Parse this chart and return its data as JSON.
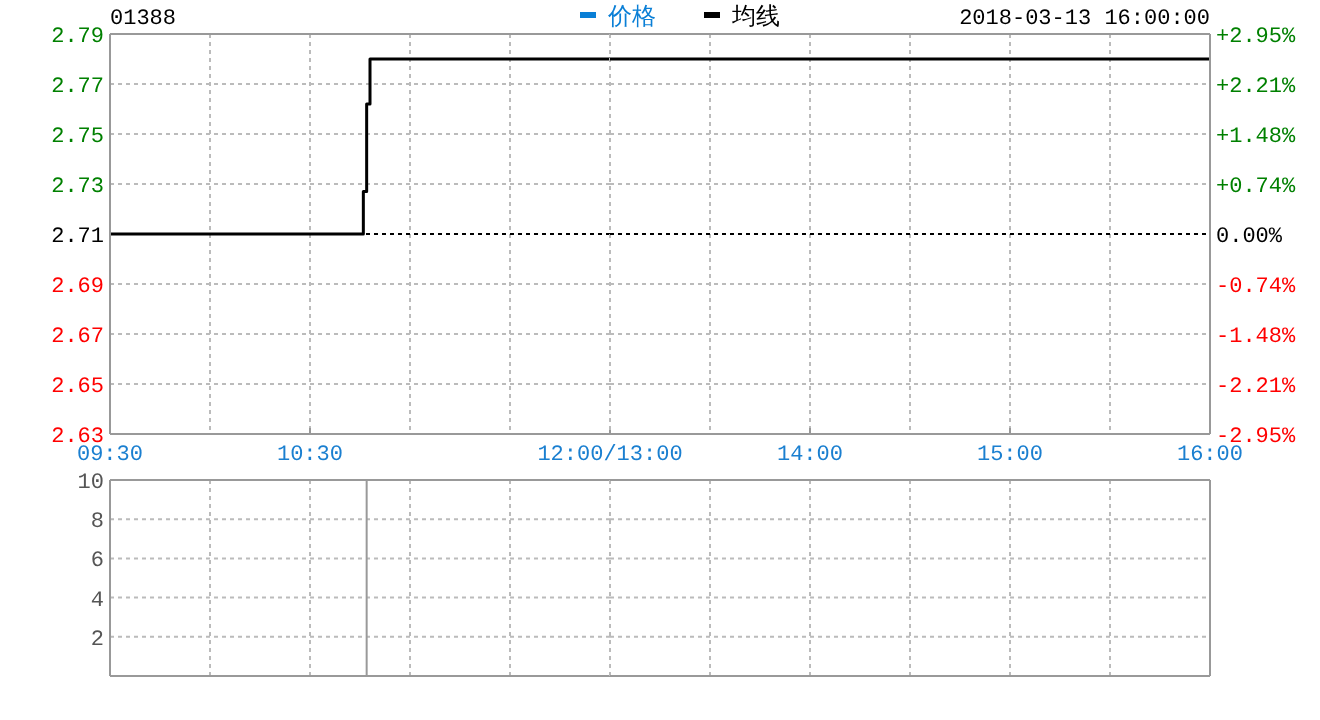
{
  "chart_data": [
    {
      "type": "step",
      "title": "01388",
      "x": [
        9.5,
        10.7667,
        10.7833,
        10.8,
        12
      ],
      "series": [
        {
          "name": "价格",
          "color": "#0a7fd6",
          "values": [
            null,
            null,
            null,
            null,
            null
          ]
        },
        {
          "name": "均线",
          "color": "#000000",
          "values": [
            2.71,
            2.727,
            2.762,
            2.78,
            2.78
          ]
        }
      ],
      "xlim": [
        9.5,
        12
      ],
      "xticks": [
        {
          "value": 9.5,
          "label": "09:30"
        },
        {
          "value": 10,
          "label": null
        },
        {
          "value": 10.5,
          "label": "10:30"
        },
        {
          "value": 11,
          "label": null
        },
        {
          "value": 11.5,
          "label": null
        },
        {
          "value": 12,
          "label": "12:00/13:00"
        }
      ],
      "ylim": [
        2.63,
        2.79
      ],
      "yticks": [
        2.63,
        2.65,
        2.67,
        2.69,
        2.71,
        2.73,
        2.75,
        2.77,
        2.79
      ],
      "ref_lines": [
        {
          "axis": "y",
          "value": 2.71,
          "color": "#000000",
          "line_style": "dotted"
        }
      ],
      "grid": true,
      "legend": "top"
    },
    {
      "type": "step",
      "annotations": [
        "2018-03-13 16:00:00"
      ],
      "x": [
        13,
        16
      ],
      "series": [
        {
          "color": "#000000",
          "values": [
            2.78,
            2.78
          ]
        }
      ],
      "xlim": [
        13,
        16
      ],
      "xticks": [
        {
          "value": 13,
          "label": null
        },
        {
          "value": 13.5,
          "label": null
        },
        {
          "value": 14,
          "label": "14:00"
        },
        {
          "value": 14.5,
          "label": null
        },
        {
          "value": 15,
          "label": "15:00"
        },
        {
          "value": 15.5,
          "label": null
        },
        {
          "value": 16,
          "label": "16:00"
        }
      ],
      "ylim": [
        2.63,
        2.79
      ],
      "yticks": [
        2.63,
        2.65,
        2.67,
        2.69,
        2.71,
        2.73,
        2.75,
        2.77,
        2.79
      ],
      "y2lim": [
        -2.95,
        2.95
      ],
      "y2ticks": [
        {
          "value": -2.95,
          "label": "-2.95%"
        },
        {
          "value": -2.21,
          "label": "-2.21%"
        },
        {
          "value": -1.48,
          "label": "-1.48%"
        },
        {
          "value": -0.74,
          "label": "-0.74%"
        },
        {
          "value": 0,
          "label": "0.00%"
        },
        {
          "value": 0.74,
          "label": "+0.74%"
        },
        {
          "value": 1.48,
          "label": "+1.48%"
        },
        {
          "value": 2.21,
          "label": "+2.21%"
        },
        {
          "value": 2.95,
          "label": "+2.95%"
        }
      ],
      "ref_lines": [
        {
          "axis": "y",
          "value": 2.71,
          "color": "#000000",
          "line_style": "dotted"
        }
      ],
      "grid": true,
      "tick_labels": "x"
    },
    {
      "type": "bar",
      "xlim": [
        9.5,
        12
      ],
      "xticks": [
        9.5,
        10,
        10.5,
        11,
        11.5,
        12
      ],
      "ylim": [
        0,
        10
      ],
      "yticks": [
        2,
        4,
        6,
        8,
        10
      ],
      "ref_lines": [
        {
          "axis": "x",
          "value": 10.7833,
          "color": "#999999",
          "line_style": "solid"
        }
      ],
      "grid": true,
      "tick_labels": "y"
    },
    {
      "type": "bar",
      "xlim": [
        13,
        16
      ],
      "xticks": [
        13,
        13.5,
        14,
        14.5,
        15,
        15.5,
        16
      ],
      "ylim": [
        0,
        10
      ],
      "yticks": [
        2,
        4,
        6,
        8,
        10
      ],
      "grid": true,
      "tick_labels": false
    }
  ]
}
